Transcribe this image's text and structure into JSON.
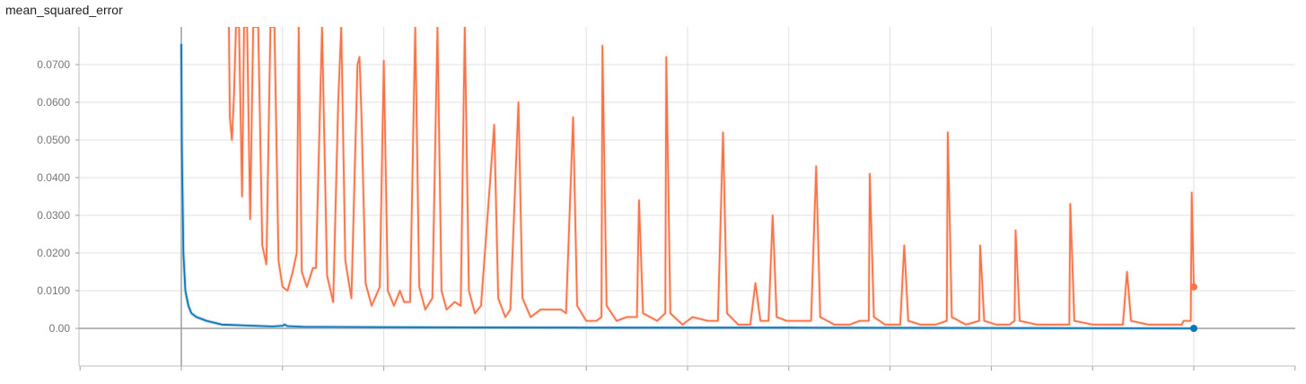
{
  "chart_data": {
    "type": "line",
    "title": "mean_squared_error",
    "xlabel": "",
    "ylabel": "",
    "ylim": [
      -0.01,
      0.08
    ],
    "yticks": [
      "0.0700",
      "0.0600",
      "0.0500",
      "0.0400",
      "0.0300",
      "0.0200",
      "0.0100",
      "0.00"
    ],
    "ytick_values": [
      0.07,
      0.06,
      0.05,
      0.04,
      0.03,
      0.02,
      0.01,
      0.0
    ],
    "xlim": [
      -1,
      11
    ],
    "x_gridlines": [
      0,
      1,
      2,
      3,
      4,
      5,
      6,
      7,
      8,
      9,
      10
    ],
    "grid": true,
    "legend": "none",
    "series": [
      {
        "color": "#f7744a",
        "raw_color": "#fcd9cc",
        "points": [
          [
            0.47,
            0.08
          ],
          [
            0.48,
            0.056
          ],
          [
            0.5,
            0.05
          ],
          [
            0.52,
            0.062
          ],
          [
            0.54,
            0.08
          ],
          [
            0.57,
            0.08
          ],
          [
            0.6,
            0.035
          ],
          [
            0.62,
            0.08
          ],
          [
            0.65,
            0.08
          ],
          [
            0.68,
            0.029
          ],
          [
            0.71,
            0.08
          ],
          [
            0.76,
            0.08
          ],
          [
            0.8,
            0.022
          ],
          [
            0.84,
            0.017
          ],
          [
            0.88,
            0.08
          ],
          [
            0.92,
            0.08
          ],
          [
            0.96,
            0.018
          ],
          [
            1.0,
            0.011
          ],
          [
            1.05,
            0.01
          ],
          [
            1.1,
            0.015
          ],
          [
            1.14,
            0.02
          ],
          [
            1.16,
            0.08
          ],
          [
            1.19,
            0.015
          ],
          [
            1.24,
            0.011
          ],
          [
            1.3,
            0.016
          ],
          [
            1.33,
            0.016
          ],
          [
            1.39,
            0.08
          ],
          [
            1.44,
            0.014
          ],
          [
            1.5,
            0.007
          ],
          [
            1.55,
            0.06
          ],
          [
            1.58,
            0.08
          ],
          [
            1.62,
            0.018
          ],
          [
            1.68,
            0.008
          ],
          [
            1.74,
            0.07
          ],
          [
            1.76,
            0.072
          ],
          [
            1.78,
            0.056
          ],
          [
            1.82,
            0.012
          ],
          [
            1.88,
            0.006
          ],
          [
            1.96,
            0.011
          ],
          [
            2.0,
            0.071
          ],
          [
            2.04,
            0.01
          ],
          [
            2.1,
            0.006
          ],
          [
            2.16,
            0.01
          ],
          [
            2.2,
            0.007
          ],
          [
            2.26,
            0.007
          ],
          [
            2.31,
            0.08
          ],
          [
            2.35,
            0.011
          ],
          [
            2.41,
            0.005
          ],
          [
            2.48,
            0.008
          ],
          [
            2.53,
            0.08
          ],
          [
            2.57,
            0.01
          ],
          [
            2.62,
            0.005
          ],
          [
            2.7,
            0.007
          ],
          [
            2.76,
            0.006
          ],
          [
            2.8,
            0.08
          ],
          [
            2.84,
            0.01
          ],
          [
            2.9,
            0.004
          ],
          [
            2.96,
            0.006
          ],
          [
            3.09,
            0.054
          ],
          [
            3.13,
            0.008
          ],
          [
            3.2,
            0.003
          ],
          [
            3.25,
            0.005
          ],
          [
            3.33,
            0.06
          ],
          [
            3.37,
            0.008
          ],
          [
            3.45,
            0.003
          ],
          [
            3.55,
            0.005
          ],
          [
            3.65,
            0.005
          ],
          [
            3.75,
            0.005
          ],
          [
            3.8,
            0.004
          ],
          [
            3.87,
            0.056
          ],
          [
            3.91,
            0.006
          ],
          [
            4.0,
            0.002
          ],
          [
            4.1,
            0.002
          ],
          [
            4.15,
            0.003
          ],
          [
            4.16,
            0.075
          ],
          [
            4.2,
            0.006
          ],
          [
            4.3,
            0.002
          ],
          [
            4.4,
            0.003
          ],
          [
            4.5,
            0.003
          ],
          [
            4.52,
            0.034
          ],
          [
            4.56,
            0.004
          ],
          [
            4.7,
            0.002
          ],
          [
            4.78,
            0.004
          ],
          [
            4.79,
            0.072
          ],
          [
            4.83,
            0.004
          ],
          [
            4.95,
            0.001
          ],
          [
            5.05,
            0.003
          ],
          [
            5.2,
            0.002
          ],
          [
            5.3,
            0.002
          ],
          [
            5.35,
            0.052
          ],
          [
            5.39,
            0.004
          ],
          [
            5.5,
            0.001
          ],
          [
            5.62,
            0.001
          ],
          [
            5.67,
            0.012
          ],
          [
            5.72,
            0.002
          ],
          [
            5.8,
            0.002
          ],
          [
            5.84,
            0.03
          ],
          [
            5.88,
            0.003
          ],
          [
            5.98,
            0.002
          ],
          [
            6.1,
            0.002
          ],
          [
            6.22,
            0.002
          ],
          [
            6.27,
            0.043
          ],
          [
            6.31,
            0.003
          ],
          [
            6.45,
            0.001
          ],
          [
            6.6,
            0.001
          ],
          [
            6.7,
            0.002
          ],
          [
            6.79,
            0.002
          ],
          [
            6.8,
            0.041
          ],
          [
            6.84,
            0.003
          ],
          [
            6.95,
            0.001
          ],
          [
            7.1,
            0.001
          ],
          [
            7.14,
            0.022
          ],
          [
            7.18,
            0.002
          ],
          [
            7.3,
            0.001
          ],
          [
            7.45,
            0.001
          ],
          [
            7.56,
            0.002
          ],
          [
            7.57,
            0.052
          ],
          [
            7.61,
            0.003
          ],
          [
            7.75,
            0.001
          ],
          [
            7.88,
            0.002
          ],
          [
            7.89,
            0.022
          ],
          [
            7.93,
            0.002
          ],
          [
            8.05,
            0.001
          ],
          [
            8.18,
            0.001
          ],
          [
            8.23,
            0.002
          ],
          [
            8.24,
            0.026
          ],
          [
            8.28,
            0.002
          ],
          [
            8.45,
            0.001
          ],
          [
            8.6,
            0.001
          ],
          [
            8.77,
            0.001
          ],
          [
            8.78,
            0.033
          ],
          [
            8.82,
            0.002
          ],
          [
            9.0,
            0.001
          ],
          [
            9.15,
            0.001
          ],
          [
            9.3,
            0.001
          ],
          [
            9.34,
            0.015
          ],
          [
            9.38,
            0.002
          ],
          [
            9.55,
            0.001
          ],
          [
            9.7,
            0.001
          ],
          [
            9.8,
            0.001
          ],
          [
            9.88,
            0.001
          ],
          [
            9.9,
            0.002
          ],
          [
            9.97,
            0.002
          ],
          [
            9.98,
            0.036
          ],
          [
            10.0,
            0.011
          ]
        ]
      },
      {
        "color": "#0b77b9",
        "raw_color": "#a6cbe2",
        "points": [
          [
            0.0,
            0.0755
          ],
          [
            0.005,
            0.048
          ],
          [
            0.02,
            0.02
          ],
          [
            0.04,
            0.01
          ],
          [
            0.07,
            0.006
          ],
          [
            0.1,
            0.004
          ],
          [
            0.15,
            0.003
          ],
          [
            0.25,
            0.002
          ],
          [
            0.4,
            0.001
          ],
          [
            0.6,
            0.0008
          ],
          [
            0.9,
            0.0005
          ],
          [
            1.0,
            0.0007
          ],
          [
            1.02,
            0.001
          ],
          [
            1.05,
            0.0006
          ],
          [
            1.2,
            0.0004
          ],
          [
            2.0,
            0.0003
          ],
          [
            4.0,
            0.0002
          ],
          [
            6.0,
            0.0002
          ],
          [
            8.0,
            0.0001
          ],
          [
            10.0,
            0.0
          ]
        ]
      }
    ]
  }
}
